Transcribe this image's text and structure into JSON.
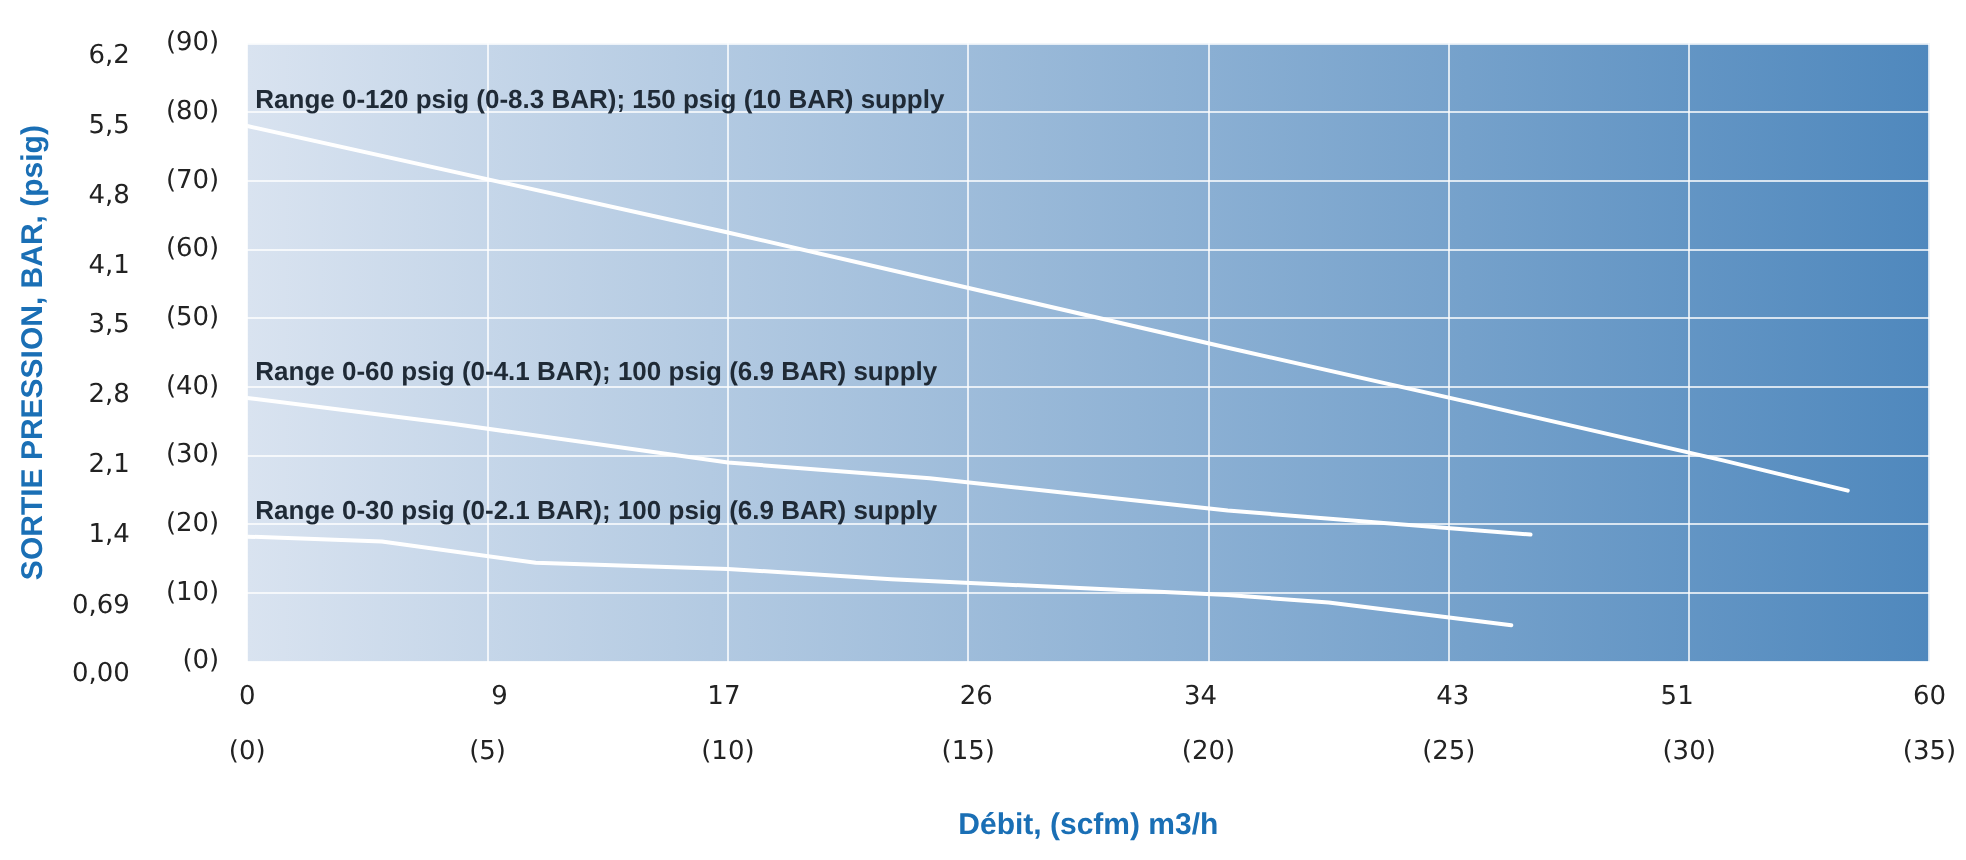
{
  "chart_data": {
    "type": "line",
    "xlabel": "Débit, (scfm) m3/h",
    "y2label": "SORTIE PRESSION, BAR, (psig)",
    "xlim": [
      0,
      35
    ],
    "xticks": [
      {
        "value": 0,
        "label": "(0)"
      },
      {
        "value": 5,
        "label": "(5)"
      },
      {
        "value": 10,
        "label": "(10)"
      },
      {
        "value": 15,
        "label": "(15)"
      },
      {
        "value": 20,
        "label": "(20)"
      },
      {
        "value": 25,
        "label": "(25)"
      },
      {
        "value": 30,
        "label": "(30)"
      },
      {
        "value": 35,
        "label": "(35)"
      }
    ],
    "x2lim": [
      0,
      60
    ],
    "x2ticks": [
      0,
      9,
      17,
      26,
      34,
      43,
      51,
      60
    ],
    "ylim": [
      0,
      90
    ],
    "yticks": [
      {
        "value": 0,
        "label": "(0)"
      },
      {
        "value": 10,
        "label": "(10)"
      },
      {
        "value": 20,
        "label": "(20)"
      },
      {
        "value": 30,
        "label": "(30)"
      },
      {
        "value": 40,
        "label": "(40)"
      },
      {
        "value": 50,
        "label": "(50)"
      },
      {
        "value": 60,
        "label": "(60)"
      },
      {
        "value": 70,
        "label": "(70)"
      },
      {
        "value": 80,
        "label": "(80)"
      },
      {
        "value": 90,
        "label": "(90)"
      }
    ],
    "y2lim": [
      0,
      6.2
    ],
    "y2ticks": [
      {
        "value": 0,
        "label": "0,00"
      },
      {
        "value": 0.69,
        "label": "0,69"
      },
      {
        "value": 1.4,
        "label": "1,4"
      },
      {
        "value": 2.1,
        "label": "2,1"
      },
      {
        "value": 2.8,
        "label": "2,8"
      },
      {
        "value": 3.5,
        "label": "3,5"
      },
      {
        "value": 4.1,
        "label": "4,1"
      },
      {
        "value": 4.8,
        "label": "4,8"
      },
      {
        "value": 5.5,
        "label": "5,5"
      },
      {
        "value": 6.2,
        "label": "6,2"
      }
    ],
    "grid": true,
    "legend": false,
    "marker": "none",
    "line_style": "solid",
    "series": [
      {
        "name": "Range 0-120 psig (0-8.3 BAR); 150 psig (10 BAR) supply",
        "color": "#ffffff",
        "x": [
          0,
          10,
          20.4,
          25.6,
          30.7,
          33.3
        ],
        "values": [
          78,
          62.5,
          45.7,
          37.5,
          29.3,
          24.9
        ]
      },
      {
        "name": "Range 0-60 psig (0-4.1 BAR); 100 psig (6.9 BAR) supply",
        "color": "#ffffff",
        "x": [
          0,
          4.3,
          10,
          14.2,
          20.4,
          26.7
        ],
        "values": [
          38.4,
          34.6,
          29,
          26.7,
          22,
          18.5
        ]
      },
      {
        "name": "Range 0-30 psig (0-2.1 BAR); 100 psig (6.9 BAR) supply",
        "color": "#ffffff",
        "x": [
          0,
          2.8,
          6,
          10,
          13.4,
          20.4,
          22.5,
          26.3
        ],
        "values": [
          18.2,
          17.5,
          14.4,
          13.5,
          12,
          9.7,
          8.6,
          5.3
        ]
      }
    ]
  }
}
